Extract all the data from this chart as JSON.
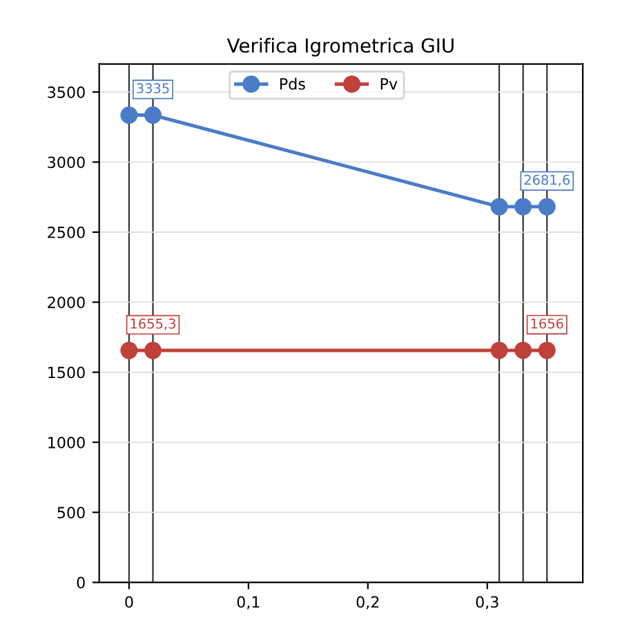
{
  "chart_data": {
    "type": "line",
    "title": "Verifica Igrometrica GIU",
    "x": [
      0,
      0.02,
      0.31,
      0.33,
      0.35
    ],
    "series": [
      {
        "name": "Pds",
        "color": "#4a7cc7",
        "values": [
          3335,
          3335,
          2681.6,
          2681.6,
          2681.6
        ],
        "value_labels": [
          null,
          "3335",
          null,
          null,
          "2681,6"
        ]
      },
      {
        "name": "Pv",
        "color": "#c0403a",
        "values": [
          1655.3,
          1655.3,
          1656,
          1656,
          1656
        ],
        "value_labels": [
          null,
          "1655,3",
          null,
          null,
          "1656"
        ]
      }
    ],
    "xlim": [
      -0.025,
      0.38
    ],
    "ylim": [
      0,
      3700
    ],
    "xticks": [
      0,
      {
        "value": 0.1,
        "label": "0,1"
      },
      {
        "value": 0.2,
        "label": "0,2"
      },
      {
        "value": 0.3,
        "label": "0,3"
      }
    ],
    "yticks": [
      0,
      500,
      1000,
      1500,
      2000,
      2500,
      3000,
      3500
    ],
    "ref_lines": [
      {
        "axis": "x",
        "value": 0
      },
      {
        "axis": "x",
        "value": 0.02
      },
      {
        "axis": "x",
        "value": 0.31
      },
      {
        "axis": "x",
        "value": 0.33
      },
      {
        "axis": "x",
        "value": 0.35
      }
    ],
    "grid": "y",
    "legend": "top",
    "marker": "circle",
    "line_style": "solid"
  }
}
